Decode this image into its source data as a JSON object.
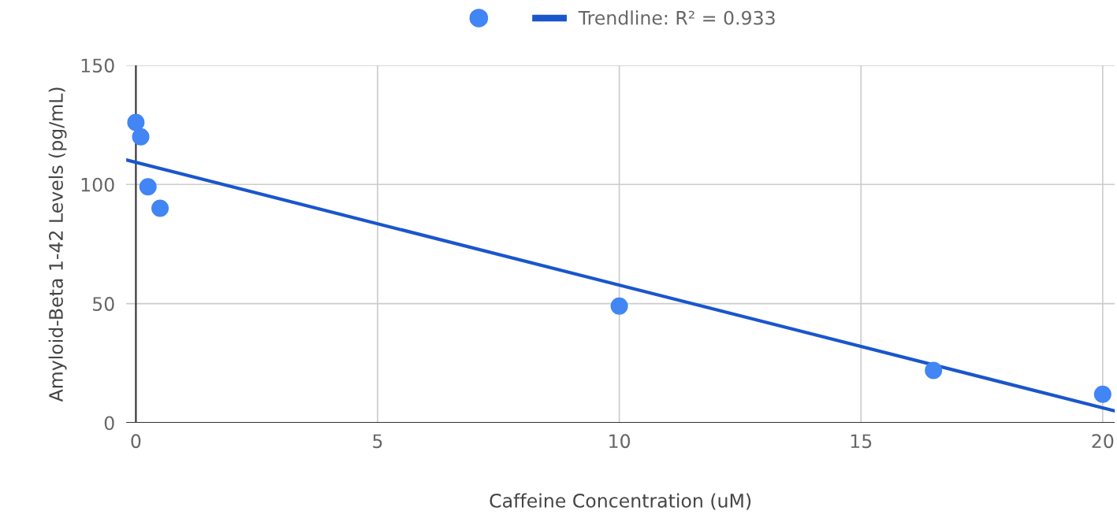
{
  "chart_data": {
    "type": "scatter",
    "xlabel": "Caffeine Concentration (uM)",
    "ylabel": "Amyloid-Beta 1-42 Levels (pg/mL)",
    "xlim": [
      -0.2,
      20.25
    ],
    "ylim": [
      0,
      150
    ],
    "xticks": [
      0,
      5,
      10,
      15,
      20
    ],
    "yticks": [
      0,
      50,
      100,
      150
    ],
    "grid": true,
    "legend": "top",
    "series": [
      {
        "marker": "circle",
        "color": "#4285f4",
        "x": [
          0,
          0.1,
          0.25,
          0.5,
          10,
          16.5,
          20
        ],
        "values": [
          126,
          120,
          99,
          90,
          49,
          22,
          12
        ]
      },
      {
        "type": "line",
        "name": "Trendline: R² = 0.933",
        "color": "#1a56cc",
        "x": [
          -0.2,
          20.25
        ],
        "values": [
          110.3,
          5.0
        ]
      }
    ]
  }
}
